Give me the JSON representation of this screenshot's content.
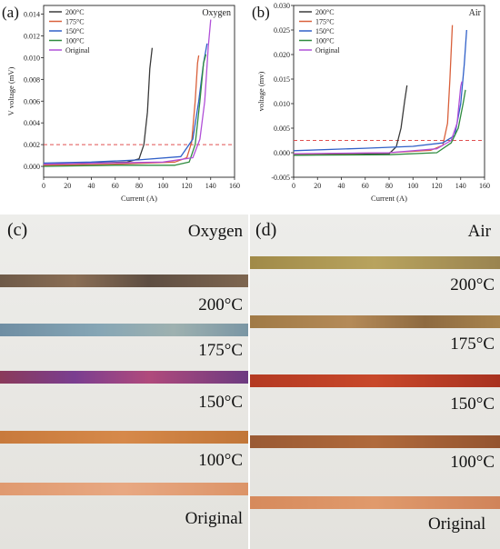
{
  "chart_data": [
    {
      "panel": "(a)",
      "type": "line",
      "title": "Oxygen",
      "xlabel": "Current (A)",
      "ylabel": "V voltage (mV)",
      "xlim": [
        0,
        160
      ],
      "ylim": [
        -0.001,
        0.0148
      ],
      "xticks": [
        0,
        20,
        40,
        60,
        80,
        100,
        120,
        140,
        160
      ],
      "yticks": [
        0.0,
        0.002,
        0.004,
        0.006,
        0.008,
        0.01,
        0.012,
        0.014
      ],
      "ytick_labels": [
        "0.000",
        "0.002",
        "0.004",
        "0.006",
        "0.008",
        "0.010",
        "0.012",
        "0.014"
      ],
      "threshold": 0.002,
      "legend_position": "top-left",
      "series": [
        {
          "name": "200°C",
          "color": "#3a3a3a",
          "points": [
            [
              0,
              0.0002
            ],
            [
              40,
              0.0003
            ],
            [
              70,
              0.0004
            ],
            [
              80,
              0.0007
            ],
            [
              84,
              0.002
            ],
            [
              87,
              0.005
            ],
            [
              89,
              0.009
            ],
            [
              91,
              0.0109
            ]
          ]
        },
        {
          "name": "175°C",
          "color": "#d9603b",
          "points": [
            [
              0,
              0.0001
            ],
            [
              60,
              0.0002
            ],
            [
              110,
              0.0004
            ],
            [
              120,
              0.0008
            ],
            [
              124,
              0.0022
            ],
            [
              127,
              0.006
            ],
            [
              129,
              0.0095
            ],
            [
              130,
              0.0102
            ]
          ]
        },
        {
          "name": "150°C",
          "color": "#3060c8",
          "points": [
            [
              0,
              0.0003
            ],
            [
              40,
              0.0004
            ],
            [
              80,
              0.0006
            ],
            [
              115,
              0.0009
            ],
            [
              125,
              0.0025
            ],
            [
              130,
              0.006
            ],
            [
              134,
              0.0095
            ],
            [
              137,
              0.0113
            ]
          ]
        },
        {
          "name": "100°C",
          "color": "#2e8b3e",
          "points": [
            [
              0,
              0.0
            ],
            [
              60,
              0.0001
            ],
            [
              110,
              0.0001
            ],
            [
              122,
              0.0004
            ],
            [
              127,
              0.002
            ],
            [
              131,
              0.006
            ],
            [
              134,
              0.0095
            ],
            [
              136,
              0.0103
            ]
          ]
        },
        {
          "name": "Original",
          "color": "#b150d8",
          "points": [
            [
              0,
              0.0002
            ],
            [
              50,
              0.0003
            ],
            [
              100,
              0.0004
            ],
            [
              125,
              0.0008
            ],
            [
              131,
              0.0025
            ],
            [
              135,
              0.006
            ],
            [
              138,
              0.011
            ],
            [
              140,
              0.0135
            ]
          ]
        }
      ]
    },
    {
      "panel": "(b)",
      "type": "line",
      "title": "Air",
      "xlabel": "Current (A)",
      "ylabel": "voltage (mv)",
      "xlim": [
        0,
        160
      ],
      "ylim": [
        -0.005,
        0.03
      ],
      "xticks": [
        0,
        20,
        40,
        60,
        80,
        100,
        120,
        140,
        160
      ],
      "yticks": [
        -0.005,
        0.0,
        0.005,
        0.01,
        0.015,
        0.02,
        0.025,
        0.03
      ],
      "ytick_labels": [
        "-0.005",
        "0.000",
        "0.005",
        "0.010",
        "0.015",
        "0.020",
        "0.025",
        "0.030"
      ],
      "threshold": 0.0025,
      "legend_position": "top-left",
      "series": [
        {
          "name": "200°C",
          "color": "#3a3a3a",
          "points": [
            [
              0,
              -0.0005
            ],
            [
              60,
              -0.0003
            ],
            [
              80,
              -0.0002
            ],
            [
              86,
              0.0012
            ],
            [
              90,
              0.005
            ],
            [
              93,
              0.0105
            ],
            [
              95,
              0.0137
            ]
          ]
        },
        {
          "name": "175°C",
          "color": "#d9603b",
          "points": [
            [
              0,
              -0.0003
            ],
            [
              80,
              0.0
            ],
            [
              115,
              0.0005
            ],
            [
              125,
              0.0015
            ],
            [
              129,
              0.006
            ],
            [
              131,
              0.015
            ],
            [
              133,
              0.026
            ]
          ]
        },
        {
          "name": "150°C",
          "color": "#3060c8",
          "points": [
            [
              0,
              0.0004
            ],
            [
              60,
              0.0009
            ],
            [
              100,
              0.0013
            ],
            [
              125,
              0.002
            ],
            [
              135,
              0.0035
            ],
            [
              140,
              0.01
            ],
            [
              143,
              0.018
            ],
            [
              145,
              0.025
            ]
          ]
        },
        {
          "name": "100°C",
          "color": "#2e8b3e",
          "points": [
            [
              0,
              -0.0005
            ],
            [
              80,
              -0.0004
            ],
            [
              120,
              0.0
            ],
            [
              132,
              0.002
            ],
            [
              138,
              0.005
            ],
            [
              142,
              0.01
            ],
            [
              144,
              0.0128
            ]
          ]
        },
        {
          "name": "Original",
          "color": "#b150d8",
          "points": [
            [
              0,
              -0.0002
            ],
            [
              80,
              0.0
            ],
            [
              120,
              0.0008
            ],
            [
              132,
              0.0025
            ],
            [
              137,
              0.006
            ],
            [
              140,
              0.0135
            ],
            [
              141,
              0.0145
            ]
          ]
        }
      ]
    }
  ],
  "photos": [
    {
      "panel": "(c)",
      "title": "Oxygen",
      "labels": [
        "200°C",
        "175°C",
        "150°C",
        "100°C",
        "Original"
      ]
    },
    {
      "panel": "(d)",
      "title": "Air",
      "labels": [
        "200°C",
        "175°C",
        "150°C",
        "100°C",
        "Original"
      ]
    }
  ]
}
